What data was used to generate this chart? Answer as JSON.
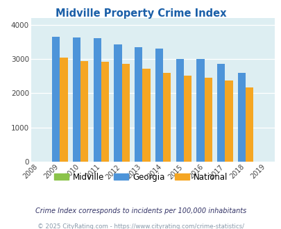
{
  "title": "Midville Property Crime Index",
  "title_color": "#1a5fa8",
  "years": [
    2008,
    2009,
    2010,
    2011,
    2012,
    2013,
    2014,
    2015,
    2016,
    2017,
    2018,
    2019
  ],
  "georgia": [
    null,
    3660,
    3640,
    3620,
    3430,
    3360,
    3310,
    3010,
    3010,
    2860,
    2590,
    null
  ],
  "national": [
    null,
    3040,
    2950,
    2930,
    2860,
    2730,
    2600,
    2510,
    2460,
    2370,
    2180,
    null
  ],
  "midville": [
    null,
    0,
    0,
    0,
    0,
    0,
    0,
    0,
    0,
    0,
    0,
    null
  ],
  "georgia_color": "#4d94d9",
  "national_color": "#f5a623",
  "midville_color": "#8bc34a",
  "plot_bg": "#ddeef2",
  "ylabel_values": [
    0,
    1000,
    2000,
    3000,
    4000
  ],
  "ylim": [
    0,
    4200
  ],
  "bar_width": 0.38,
  "legend_labels": [
    "Midville",
    "Georgia",
    "National"
  ],
  "footnote1": "Crime Index corresponds to incidents per 100,000 inhabitants",
  "footnote2": "© 2025 CityRating.com - https://www.cityrating.com/crime-statistics/",
  "footnote1_color": "#333366",
  "footnote2_color": "#8899aa"
}
